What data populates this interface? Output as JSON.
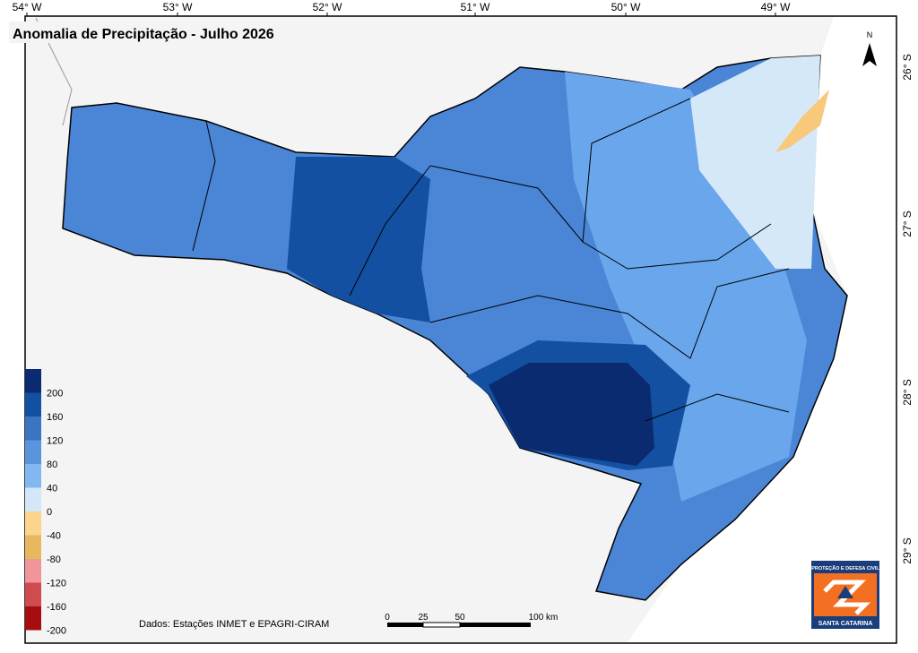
{
  "map": {
    "title": "Anomalia de Precipitação - Julho 2026",
    "lon_labels": [
      "54° W",
      "53° W",
      "52° W",
      "51° W",
      "50° W",
      "49° W"
    ],
    "lat_labels": [
      "26° S",
      "27° S",
      "28° S",
      "29° S"
    ],
    "north": "N",
    "legend": {
      "colors": [
        "#0b2b70",
        "#1450a2",
        "#3c74c4",
        "#5a94dc",
        "#82b8f2",
        "#d3e7f8",
        "#fcd48c",
        "#e8b85e",
        "#f1959a",
        "#d04b4f",
        "#a60c10"
      ],
      "labels": [
        "200",
        "160",
        "120",
        "80",
        "40",
        "0",
        "-40",
        "-80",
        "-120",
        "-160",
        "-200"
      ]
    },
    "source": "Dados: Estações INMET e EPAGRI-CIRAM",
    "scale": [
      "0",
      "25",
      "50",
      "100 km"
    ],
    "logo": {
      "top": "PROTEÇÃO E DEFESA CIVIL",
      "bottom": "SANTA CATARINA"
    }
  }
}
